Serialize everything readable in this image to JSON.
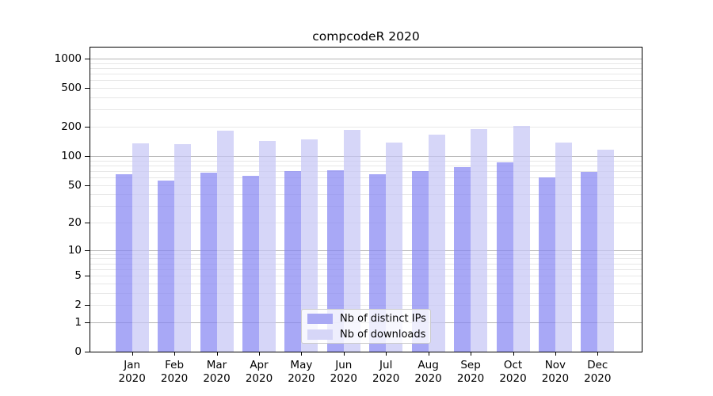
{
  "chart_data": {
    "type": "bar",
    "title": "compcodeR 2020",
    "y_scale": "log1p (y position proportional to log10 of 1+value)",
    "grid": true,
    "legend_position": "inside lower-center",
    "categories": [
      "Jan",
      "Feb",
      "Mar",
      "Apr",
      "May",
      "Jun",
      "Jul",
      "Aug",
      "Sep",
      "Oct",
      "Nov",
      "Dec"
    ],
    "x_year": "2020",
    "series": [
      {
        "key": "distinct-ips",
        "name": "Nb of distinct IPs",
        "color": "#a9a9f4",
        "fill": "rgba(131,131,242,0.7)",
        "values": [
          65,
          56,
          67,
          62,
          70,
          71,
          65,
          70,
          76,
          86,
          60,
          69
        ]
      },
      {
        "key": "downloads",
        "name": "Nb of downloads",
        "color": "#d6d6f7",
        "fill": "rgba(196,196,245,0.7)",
        "values": [
          136,
          132,
          182,
          142,
          147,
          187,
          137,
          166,
          190,
          205,
          138,
          117
        ]
      }
    ],
    "y_ticks": [
      1000,
      500,
      200,
      100,
      50,
      20,
      10,
      5,
      2,
      1,
      0
    ],
    "y_grid_major": [
      1000,
      100,
      10,
      1
    ],
    "y_grid_minor": [
      900,
      800,
      700,
      600,
      500,
      400,
      300,
      200,
      90,
      80,
      70,
      60,
      50,
      40,
      30,
      20,
      9,
      8,
      7,
      6,
      5,
      4,
      3,
      2
    ],
    "ylim": [
      0,
      1300
    ]
  }
}
